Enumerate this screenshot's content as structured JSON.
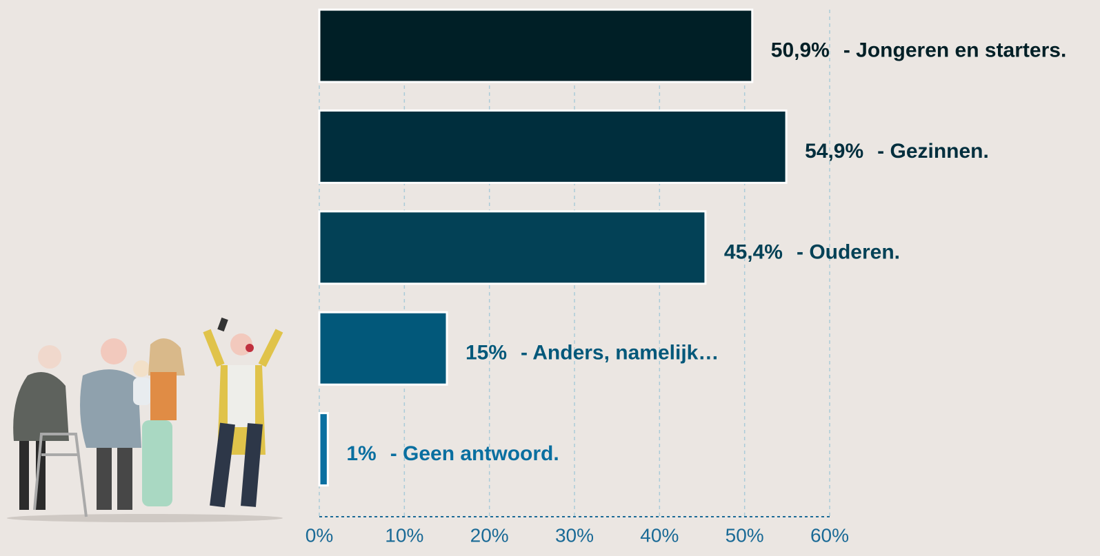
{
  "chart_data": {
    "type": "bar",
    "orientation": "horizontal",
    "categories": [
      "- Jongeren en starters.",
      "- Gezinnen.",
      "- Ouderen.",
      "- Anders, namelijk…",
      "- Geen antwoord."
    ],
    "values": [
      50.9,
      54.9,
      45.4,
      15,
      1
    ],
    "value_labels": [
      "50,9%",
      "54,9%",
      "45,4%",
      "15%",
      "1%"
    ],
    "colors": [
      "#001f26",
      "#002e3d",
      "#034156",
      "#02587a",
      "#0a6fa0"
    ],
    "xlim": [
      0,
      60
    ],
    "xticks": [
      {
        "value": 0,
        "label": "0%"
      },
      {
        "value": 10,
        "label": "10%"
      },
      {
        "value": 20,
        "label": "20%"
      },
      {
        "value": 30,
        "label": "30%"
      },
      {
        "value": 40,
        "label": "40%"
      },
      {
        "value": 50,
        "label": "50%"
      },
      {
        "value": 60,
        "label": "60%"
      }
    ],
    "grid": true
  }
}
